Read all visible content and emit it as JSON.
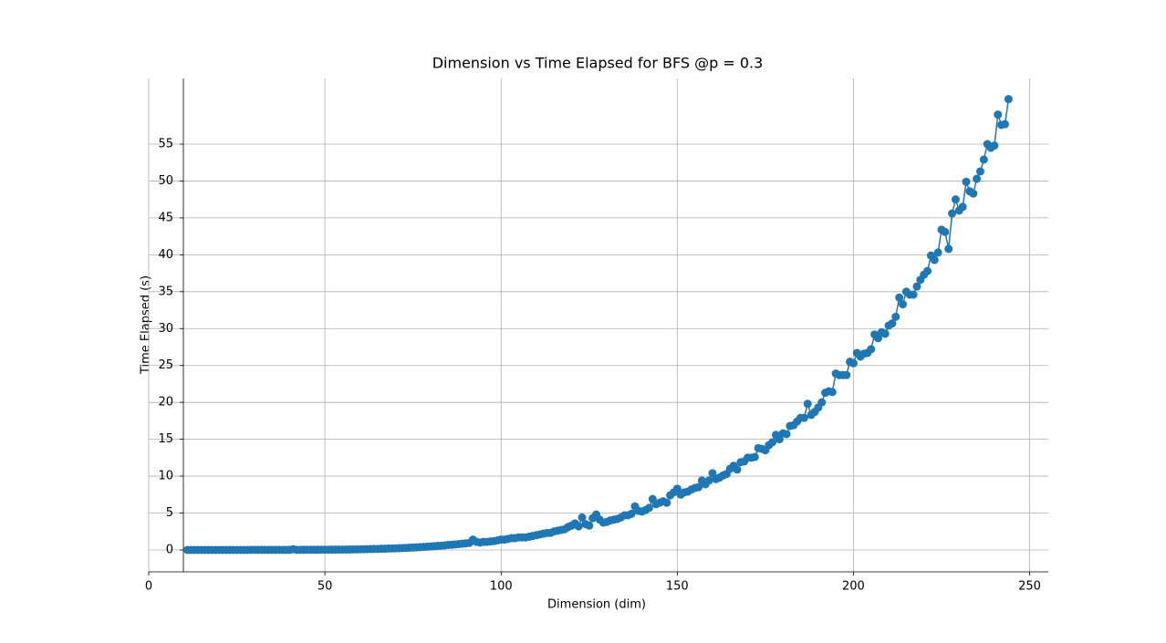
{
  "chart_data": {
    "type": "line",
    "title": "Dimension vs Time Elapsed for BFS @p = 0.3",
    "x_label": "Dimension (dim)",
    "y_label": "Time Elapsed (s)",
    "xlim": [
      0,
      255.3
    ],
    "ylim": [
      -2.97,
      63.9
    ],
    "xticks": [
      0,
      50,
      100,
      150,
      200,
      250
    ],
    "yticks": [
      0,
      5,
      10,
      15,
      20,
      25,
      30,
      35,
      40,
      45,
      50,
      55
    ],
    "grid": true,
    "markers": true,
    "x": [
      11,
      12,
      13,
      14,
      15,
      16,
      17,
      18,
      19,
      20,
      21,
      22,
      23,
      24,
      25,
      26,
      27,
      28,
      29,
      30,
      31,
      32,
      33,
      34,
      35,
      36,
      37,
      38,
      39,
      40,
      41,
      42,
      43,
      44,
      45,
      46,
      47,
      48,
      49,
      50,
      51,
      52,
      53,
      54,
      55,
      56,
      57,
      58,
      59,
      60,
      61,
      62,
      63,
      64,
      65,
      66,
      67,
      68,
      69,
      70,
      71,
      72,
      73,
      74,
      75,
      76,
      77,
      78,
      79,
      80,
      81,
      82,
      83,
      84,
      85,
      86,
      87,
      88,
      89,
      90,
      91,
      92,
      93,
      94,
      95,
      96,
      97,
      98,
      99,
      100,
      101,
      102,
      103,
      104,
      105,
      106,
      107,
      108,
      109,
      110,
      111,
      112,
      113,
      114,
      115,
      116,
      117,
      118,
      119,
      120,
      121,
      122,
      123,
      124,
      125,
      126,
      127,
      128,
      129,
      130,
      131,
      132,
      133,
      134,
      135,
      136,
      137,
      138,
      139,
      140,
      141,
      142,
      143,
      144,
      145,
      146,
      147,
      148,
      149,
      150,
      151,
      152,
      153,
      154,
      155,
      156,
      157,
      158,
      159,
      160,
      161,
      162,
      163,
      164,
      165,
      166,
      167,
      168,
      169,
      170,
      171,
      172,
      173,
      174,
      175,
      176,
      177,
      178,
      179,
      180,
      181,
      182,
      183,
      184,
      185,
      186,
      187,
      188,
      189,
      190,
      191,
      192,
      193,
      194,
      195,
      196,
      197,
      198,
      199,
      200,
      201,
      202,
      203,
      204,
      205,
      206,
      207,
      208,
      209,
      210,
      211,
      212,
      213,
      214,
      215,
      216,
      217,
      218,
      219,
      220,
      221,
      222,
      223,
      224,
      225,
      226,
      227,
      228,
      229,
      230,
      231,
      232,
      233,
      234,
      235,
      236,
      237,
      238,
      239,
      240,
      241,
      242,
      243,
      244
    ],
    "series": [
      {
        "color": "#1f77b4",
        "values": [
          0,
          0,
          0,
          0,
          0,
          0,
          0,
          0,
          0,
          0,
          0,
          0,
          0,
          0,
          0,
          0,
          0,
          0,
          0.01,
          0.01,
          0.01,
          0.01,
          0.01,
          0.01,
          0.01,
          0.01,
          0.01,
          0.01,
          0.01,
          0.01,
          0.1,
          0.01,
          0.01,
          0.02,
          0.02,
          0.02,
          0.02,
          0.02,
          0.03,
          0.03,
          0.03,
          0.04,
          0.04,
          0.05,
          0.05,
          0.06,
          0.06,
          0.07,
          0.08,
          0.09,
          0.1,
          0.11,
          0.12,
          0.13,
          0.14,
          0.16,
          0.17,
          0.19,
          0.2,
          0.22,
          0.24,
          0.26,
          0.28,
          0.3,
          0.33,
          0.35,
          0.38,
          0.41,
          0.44,
          0.47,
          0.5,
          0.55,
          0.58,
          0.62,
          0.68,
          0.7,
          0.75,
          0.8,
          0.85,
          0.9,
          0.95,
          1.4,
          1.1,
          1.0,
          1.1,
          1.1,
          1.15,
          1.2,
          1.3,
          1.4,
          1.4,
          1.5,
          1.6,
          1.6,
          1.7,
          1.7,
          1.7,
          1.8,
          1.9,
          2.0,
          2.1,
          2.2,
          2.3,
          2.3,
          2.5,
          2.6,
          2.7,
          2.8,
          3.1,
          3.3,
          3.6,
          3.2,
          4.4,
          3.5,
          3.3,
          4.3,
          4.8,
          4.1,
          3.7,
          3.8,
          4.0,
          4.1,
          4.2,
          4.4,
          4.7,
          4.7,
          4.9,
          5.9,
          5.3,
          5.2,
          5.4,
          5.7,
          6.9,
          6.2,
          6.4,
          6.6,
          6.4,
          7.4,
          7.8,
          8.3,
          7.5,
          7.8,
          7.9,
          8.2,
          8.4,
          8.5,
          9.4,
          8.9,
          9.4,
          10.4,
          9.6,
          9.8,
          10.1,
          10.3,
          11.0,
          11.4,
          10.9,
          11.9,
          12.0,
          12.5,
          12.5,
          12.6,
          13.8,
          13.7,
          13.5,
          14.2,
          14.6,
          15.6,
          15.0,
          15.8,
          15.7,
          16.8,
          16.9,
          17.4,
          17.9,
          17.9,
          19.8,
          18.3,
          18.7,
          19.3,
          20.0,
          21.3,
          21.5,
          21.4,
          23.9,
          23.7,
          23.7,
          23.7,
          25.5,
          25.3,
          26.7,
          26.2,
          26.6,
          26.7,
          27.2,
          29.2,
          28.7,
          29.5,
          29.3,
          30.4,
          30.7,
          31.6,
          34.2,
          33.3,
          35.0,
          34.6,
          34.6,
          35.7,
          36.6,
          37.3,
          37.8,
          39.9,
          39.3,
          40.3,
          43.4,
          43.1,
          40.8,
          45.6,
          47.5,
          46.0,
          46.5,
          49.9,
          48.6,
          48.3,
          50.3,
          51.3,
          52.9,
          55.0,
          54.5,
          54.8,
          59.0,
          57.6,
          57.7,
          61.1
        ]
      }
    ]
  }
}
